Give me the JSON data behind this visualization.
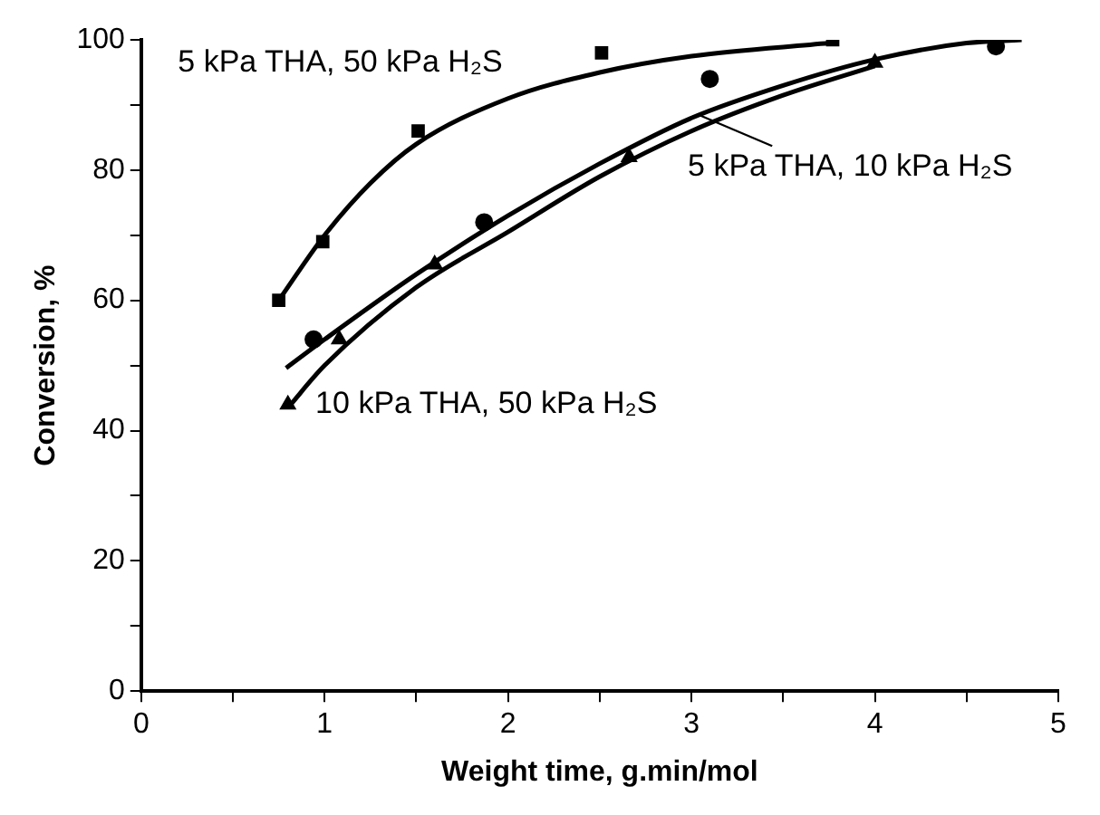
{
  "chart_data": {
    "type": "scatter",
    "xlabel": "Weight time, g.min/mol",
    "ylabel": "Conversion, %",
    "xlim": [
      0,
      5
    ],
    "ylim": [
      0,
      100
    ],
    "xticks": [
      0,
      {
        "value": 0.5,
        "label": null
      },
      1,
      {
        "value": 1.5,
        "label": null
      },
      2,
      {
        "value": 2.5,
        "label": null
      },
      3,
      {
        "value": 3.5,
        "label": null
      },
      4,
      {
        "value": 4.5,
        "label": null
      },
      5
    ],
    "yticks": [
      0,
      {
        "value": 10,
        "label": null
      },
      20,
      {
        "value": 30,
        "label": null
      },
      40,
      {
        "value": 50,
        "label": null
      },
      60,
      {
        "value": 70,
        "label": null
      },
      80,
      {
        "value": 90,
        "label": null
      },
      100
    ],
    "grid": false,
    "series": [
      {
        "name": "5 kPa THA, 50 kPa H₂S",
        "marker": "square",
        "color": "#000000",
        "x": [
          0.75,
          0.99,
          1.51,
          2.51,
          3.77
        ],
        "values": [
          60,
          69,
          86,
          98,
          100
        ]
      },
      {
        "name": "5 kPa THA, 10 kPa H₂S",
        "marker": "circle",
        "color": "#000000",
        "x": [
          0.94,
          1.87,
          3.1,
          4.66
        ],
        "values": [
          54,
          72,
          94,
          99
        ]
      },
      {
        "name": "10 kPa THA, 50 kPa H₂S",
        "marker": "triangle",
        "color": "#000000",
        "x": [
          0.8,
          1.08,
          1.6,
          2.66,
          4.0
        ],
        "values": [
          44,
          54,
          65.5,
          82,
          96.5
        ]
      },
      {
        "type": "line",
        "marker": "none",
        "line_style": "solid",
        "color": "#000000",
        "x": [
          0.75,
          1,
          1.25,
          1.5,
          2,
          2.5,
          3,
          3.75
        ],
        "values": [
          60,
          70,
          78,
          84,
          91,
          95,
          97.5,
          99.5
        ]
      },
      {
        "type": "line",
        "marker": "none",
        "line_style": "solid",
        "color": "#000000",
        "x": [
          0.79,
          1,
          1.5,
          2,
          2.5,
          3,
          3.5,
          4,
          4.5,
          4.8
        ],
        "values": [
          49.6,
          54,
          64,
          73,
          81,
          88,
          93,
          97,
          99.5,
          100
        ]
      },
      {
        "type": "line",
        "marker": "none",
        "line_style": "solid",
        "color": "#000000",
        "x": [
          0.8,
          1,
          1.5,
          2,
          2.5,
          3,
          3.5,
          4
        ],
        "values": [
          43.5,
          50,
          62,
          70.5,
          79,
          86,
          91.5,
          96
        ]
      }
    ]
  }
}
